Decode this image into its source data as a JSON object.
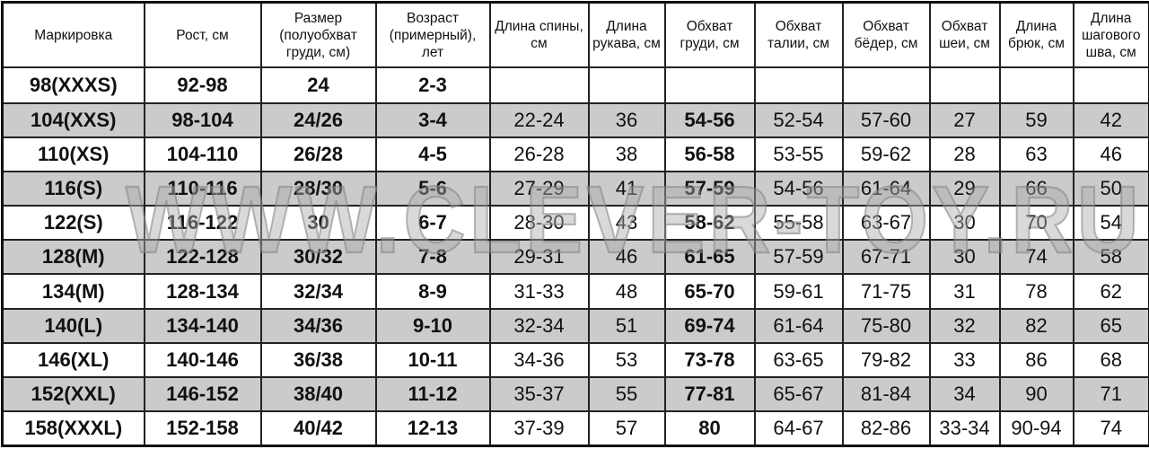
{
  "table": {
    "headers": [
      "Маркировка",
      "Рост, см",
      "Размер (полуобхват груди, см)",
      "Возраст (примерный), лет",
      "Длина спины, см",
      "Длина рукава, см",
      "Обхват груди, см",
      "Обхват талии, см",
      "Обхват бёдер, см",
      "Обхват шеи, см",
      "Длина брюк, см",
      "Длина шагового шва, см"
    ],
    "rows": [
      [
        "98(XXXS)",
        "92-98",
        "24",
        "2-3",
        "",
        "",
        "",
        "",
        "",
        "",
        "",
        ""
      ],
      [
        "104(XXS)",
        "98-104",
        "24/26",
        "3-4",
        "22-24",
        "36",
        "54-56",
        "52-54",
        "57-60",
        "27",
        "59",
        "42"
      ],
      [
        "110(XS)",
        "104-110",
        "26/28",
        "4-5",
        "26-28",
        "38",
        "56-58",
        "53-55",
        "59-62",
        "28",
        "63",
        "46"
      ],
      [
        "116(S)",
        "110-116",
        "28/30",
        "5-6",
        "27-29",
        "41",
        "57-59",
        "54-56",
        "61-64",
        "29",
        "66",
        "50"
      ],
      [
        "122(S)",
        "116-122",
        "30",
        "6-7",
        "28-30",
        "43",
        "58-62",
        "55-58",
        "63-67",
        "30",
        "70",
        "54"
      ],
      [
        "128(M)",
        "122-128",
        "30/32",
        "7-8",
        "29-31",
        "46",
        "61-65",
        "57-59",
        "67-71",
        "30",
        "74",
        "58"
      ],
      [
        "134(M)",
        "128-134",
        "32/34",
        "8-9",
        "31-33",
        "48",
        "65-70",
        "59-61",
        "71-75",
        "31",
        "78",
        "62"
      ],
      [
        "140(L)",
        "134-140",
        "34/36",
        "9-10",
        "32-34",
        "51",
        "69-74",
        "61-64",
        "75-80",
        "32",
        "82",
        "65"
      ],
      [
        "146(XL)",
        "140-146",
        "36/38",
        "10-11",
        "34-36",
        "53",
        "73-78",
        "63-65",
        "79-82",
        "33",
        "86",
        "68"
      ],
      [
        "152(XXL)",
        "146-152",
        "38/40",
        "11-12",
        "35-37",
        "55",
        "77-81",
        "65-67",
        "81-84",
        "34",
        "90",
        "71"
      ],
      [
        "158(XXXL)",
        "152-158",
        "40/42",
        "12-13",
        "37-39",
        "57",
        "80",
        "64-67",
        "82-86",
        "33-34",
        "90-94",
        "74"
      ]
    ],
    "shaded_row_color": "#cbcbcb"
  },
  "watermark": "WWW.CLEVER-TOY.RU"
}
